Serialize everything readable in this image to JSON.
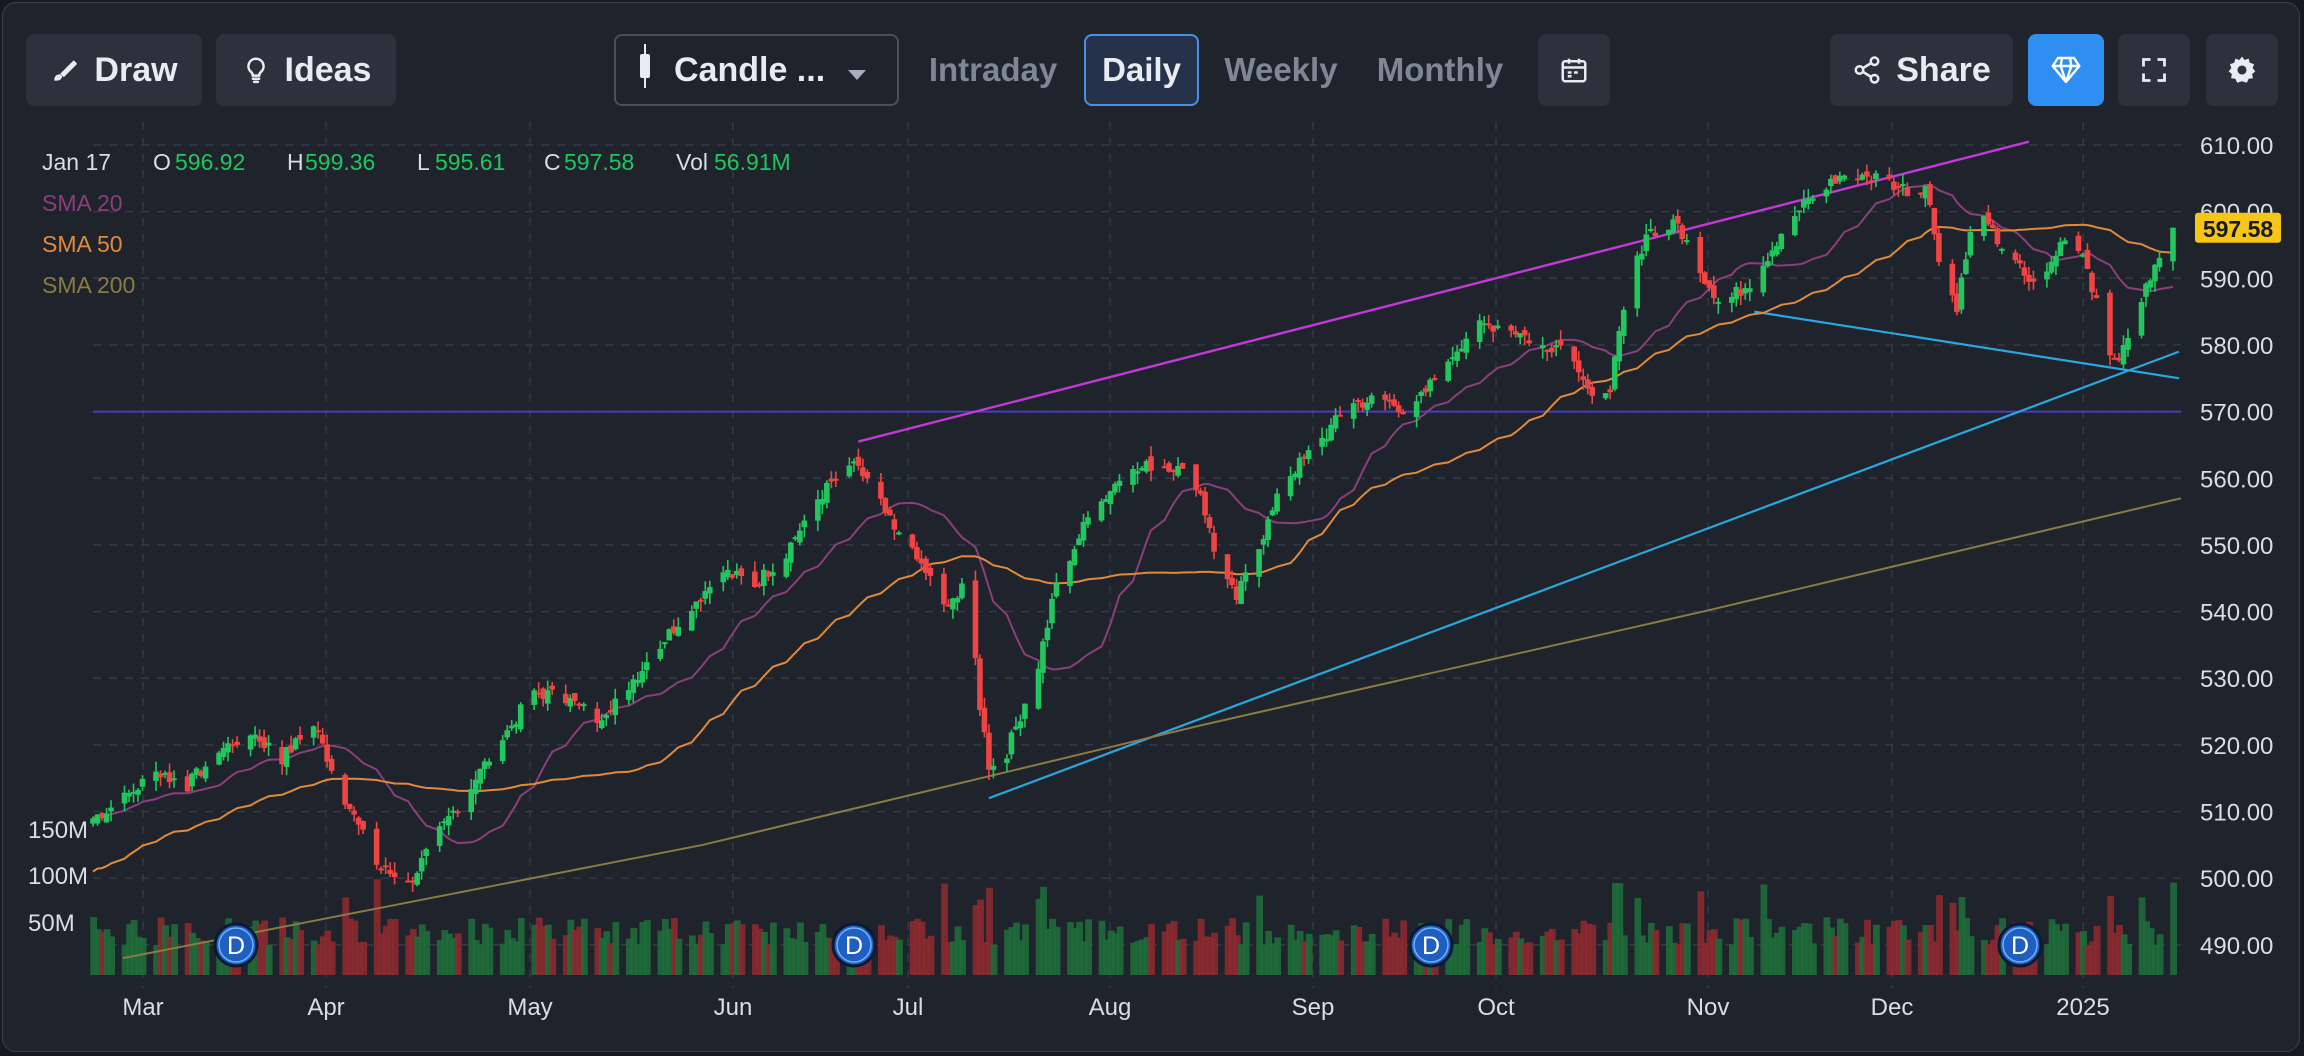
{
  "toolbar": {
    "draw_label": "Draw",
    "ideas_label": "Ideas",
    "chart_type_label": "Candle ...",
    "intervals": [
      "Intraday",
      "Daily",
      "Weekly",
      "Monthly"
    ],
    "active_interval": "Daily",
    "share_label": "Share"
  },
  "legend": {
    "date": "Jan 17",
    "open_label": "O",
    "open": "596.92",
    "high_label": "H",
    "high": "599.36",
    "low_label": "L",
    "low": "595.61",
    "close_label": "C",
    "close": "597.58",
    "vol_label": "Vol",
    "vol": "56.91M",
    "indicators": [
      {
        "name": "SMA 20",
        "color": "#8a3f7a"
      },
      {
        "name": "SMA 50",
        "color": "#e08a3c"
      },
      {
        "name": "SMA 200",
        "color": "#8a7a45"
      }
    ]
  },
  "colors": {
    "up": "#22c55e",
    "down": "#ef4444",
    "vol_up": "#1f6b3a",
    "vol_down": "#8a2a30",
    "accent": "#2f8ef2",
    "price_tag": "#f5c518",
    "channel_line": "#c03ad6",
    "trend_line": "#2aa7e0",
    "support_line": "#4a3fb8"
  },
  "chart_data": {
    "type": "candlestick",
    "x_tick_labels": [
      "Mar",
      "Apr",
      "May",
      "Jun",
      "Jul",
      "Aug",
      "Sep",
      "Oct",
      "Nov",
      "Dec",
      "2025"
    ],
    "y_tick_labels": [
      "610.00",
      "600.00",
      "590.00",
      "580.00",
      "570.00",
      "560.00",
      "550.00",
      "540.00",
      "530.00",
      "520.00",
      "510.00",
      "500.00",
      "490.00"
    ],
    "volume_tick_labels": [
      "150M",
      "100M",
      "50M"
    ],
    "ylim": [
      485,
      612
    ],
    "last_price": "597.58",
    "dividend_marker_label": "D",
    "close_series": [
      {
        "d": 0,
        "c": 509
      },
      {
        "d": 7,
        "c": 512
      },
      {
        "d": 14,
        "c": 516
      },
      {
        "d": 21,
        "c": 514
      },
      {
        "d": 28,
        "c": 519
      },
      {
        "d": 35,
        "c": 522
      },
      {
        "d": 42,
        "c": 518
      },
      {
        "d": 49,
        "c": 523
      },
      {
        "d": 56,
        "c": 512
      },
      {
        "d": 63,
        "c": 502
      },
      {
        "d": 70,
        "c": 499
      },
      {
        "d": 77,
        "c": 507
      },
      {
        "d": 84,
        "c": 514
      },
      {
        "d": 91,
        "c": 521
      },
      {
        "d": 98,
        "c": 528
      },
      {
        "d": 105,
        "c": 527
      },
      {
        "d": 112,
        "c": 524
      },
      {
        "d": 119,
        "c": 529
      },
      {
        "d": 126,
        "c": 535
      },
      {
        "d": 133,
        "c": 541
      },
      {
        "d": 140,
        "c": 546
      },
      {
        "d": 147,
        "c": 544
      },
      {
        "d": 154,
        "c": 549
      },
      {
        "d": 161,
        "c": 557
      },
      {
        "d": 168,
        "c": 562
      },
      {
        "d": 172,
        "c": 560
      },
      {
        "d": 178,
        "c": 552
      },
      {
        "d": 185,
        "c": 546
      },
      {
        "d": 190,
        "c": 540
      },
      {
        "d": 194,
        "c": 546
      },
      {
        "d": 197,
        "c": 526
      },
      {
        "d": 199,
        "c": 517
      },
      {
        "d": 203,
        "c": 519
      },
      {
        "d": 210,
        "c": 532
      },
      {
        "d": 214,
        "c": 544
      },
      {
        "d": 221,
        "c": 554
      },
      {
        "d": 228,
        "c": 560
      },
      {
        "d": 235,
        "c": 562
      },
      {
        "d": 240,
        "c": 562
      },
      {
        "d": 246,
        "c": 558
      },
      {
        "d": 250,
        "c": 546
      },
      {
        "d": 254,
        "c": 542
      },
      {
        "d": 259,
        "c": 550
      },
      {
        "d": 265,
        "c": 560
      },
      {
        "d": 272,
        "c": 565
      },
      {
        "d": 279,
        "c": 571
      },
      {
        "d": 286,
        "c": 572
      },
      {
        "d": 293,
        "c": 570
      },
      {
        "d": 300,
        "c": 577
      },
      {
        "d": 307,
        "c": 583
      },
      {
        "d": 314,
        "c": 583
      },
      {
        "d": 321,
        "c": 580
      },
      {
        "d": 328,
        "c": 580
      },
      {
        "d": 333,
        "c": 572
      },
      {
        "d": 337,
        "c": 574
      },
      {
        "d": 341,
        "c": 588
      },
      {
        "d": 345,
        "c": 597
      },
      {
        "d": 352,
        "c": 598
      },
      {
        "d": 358,
        "c": 590
      },
      {
        "d": 362,
        "c": 586
      },
      {
        "d": 369,
        "c": 590
      },
      {
        "d": 376,
        "c": 598
      },
      {
        "d": 383,
        "c": 603
      },
      {
        "d": 390,
        "c": 606
      },
      {
        "d": 397,
        "c": 605
      },
      {
        "d": 404,
        "c": 603
      },
      {
        "d": 407,
        "c": 604
      },
      {
        "d": 411,
        "c": 590
      },
      {
        "d": 414,
        "c": 586
      },
      {
        "d": 418,
        "c": 600
      },
      {
        "d": 425,
        "c": 594
      },
      {
        "d": 432,
        "c": 588
      },
      {
        "d": 439,
        "c": 598
      },
      {
        "d": 443,
        "c": 592
      },
      {
        "d": 446,
        "c": 583
      },
      {
        "d": 449,
        "c": 577
      },
      {
        "d": 453,
        "c": 582
      },
      {
        "d": 456,
        "c": 590
      },
      {
        "d": 460,
        "c": 593
      },
      {
        "d": 462,
        "c": 597.58
      }
    ]
  }
}
